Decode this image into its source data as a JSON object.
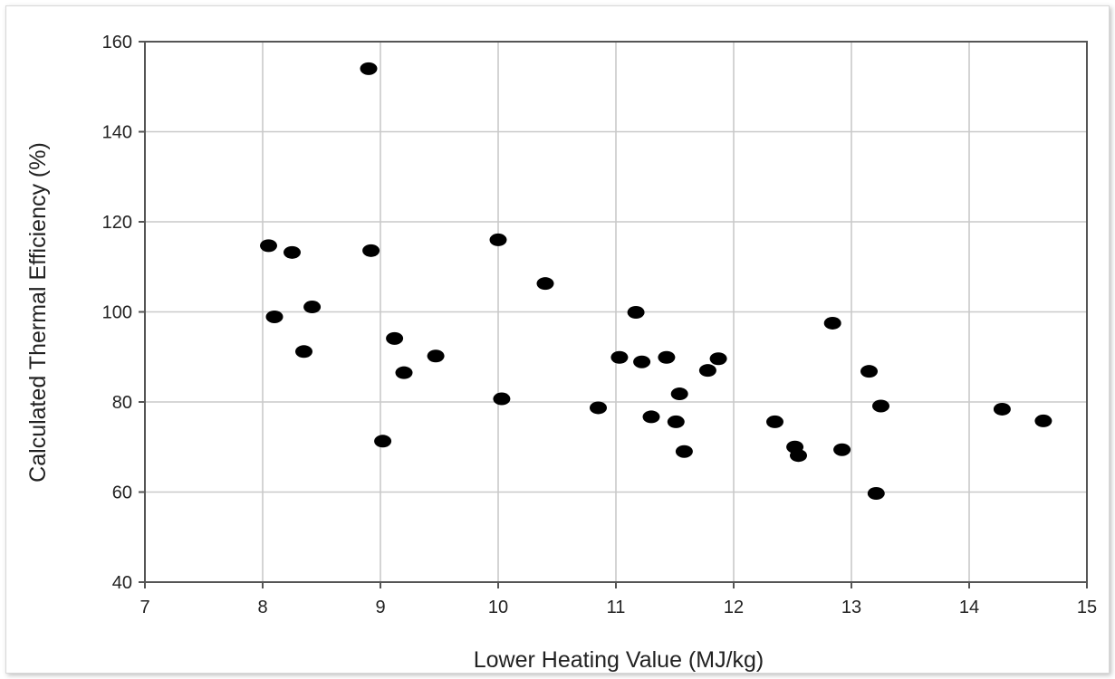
{
  "chart_data": {
    "type": "scatter",
    "title": "",
    "xlabel": "Lower Heating Value (MJ/kg)",
    "ylabel": "Calculated Thermal Efficiency (%)",
    "xlim": [
      7,
      15
    ],
    "ylim": [
      40,
      160
    ],
    "x_ticks": [
      "7",
      "8",
      "9",
      "10",
      "11",
      "12",
      "13",
      "14",
      "15"
    ],
    "y_ticks": [
      "40",
      "60",
      "80",
      "100",
      "120",
      "140",
      "160"
    ],
    "grid": true,
    "legend": "none",
    "marker_color": "#000000",
    "series": [
      {
        "points": [
          {
            "x": 8.05,
            "y": 114.7
          },
          {
            "x": 8.1,
            "y": 98.9
          },
          {
            "x": 8.25,
            "y": 113.2
          },
          {
            "x": 8.35,
            "y": 91.2
          },
          {
            "x": 8.42,
            "y": 101.1
          },
          {
            "x": 8.9,
            "y": 154.0
          },
          {
            "x": 8.92,
            "y": 113.6
          },
          {
            "x": 9.02,
            "y": 71.3
          },
          {
            "x": 9.12,
            "y": 94.1
          },
          {
            "x": 9.2,
            "y": 86.5
          },
          {
            "x": 9.47,
            "y": 90.2
          },
          {
            "x": 10.0,
            "y": 116.0
          },
          {
            "x": 10.03,
            "y": 80.7
          },
          {
            "x": 10.4,
            "y": 106.3
          },
          {
            "x": 10.85,
            "y": 78.7
          },
          {
            "x": 11.03,
            "y": 89.9
          },
          {
            "x": 11.17,
            "y": 99.9
          },
          {
            "x": 11.22,
            "y": 88.9
          },
          {
            "x": 11.3,
            "y": 76.7
          },
          {
            "x": 11.43,
            "y": 89.9
          },
          {
            "x": 11.51,
            "y": 75.6
          },
          {
            "x": 11.54,
            "y": 81.8
          },
          {
            "x": 11.58,
            "y": 69.0
          },
          {
            "x": 11.78,
            "y": 87.0
          },
          {
            "x": 11.87,
            "y": 89.6
          },
          {
            "x": 12.35,
            "y": 75.6
          },
          {
            "x": 12.52,
            "y": 70.0
          },
          {
            "x": 12.55,
            "y": 68.1
          },
          {
            "x": 12.84,
            "y": 97.5
          },
          {
            "x": 12.92,
            "y": 69.4
          },
          {
            "x": 13.15,
            "y": 86.8
          },
          {
            "x": 13.21,
            "y": 59.7
          },
          {
            "x": 13.25,
            "y": 79.1
          },
          {
            "x": 14.28,
            "y": 78.4
          },
          {
            "x": 14.63,
            "y": 75.8
          }
        ]
      }
    ]
  }
}
